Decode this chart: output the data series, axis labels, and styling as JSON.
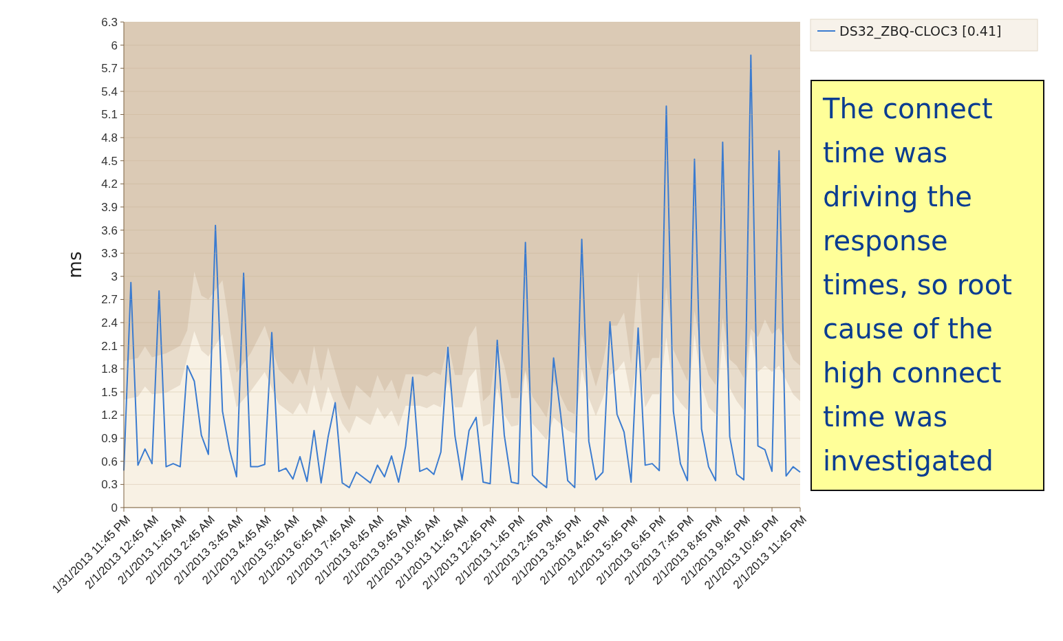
{
  "chart_data": {
    "type": "line",
    "ylabel": "ms",
    "ylim": [
      0,
      6.3
    ],
    "yticks": [
      0,
      0.3,
      0.6,
      0.9,
      1.2,
      1.5,
      1.8,
      2.1,
      2.4,
      2.7,
      3,
      3.3,
      3.6,
      3.9,
      4.2,
      4.5,
      4.8,
      5.1,
      5.4,
      5.7,
      6,
      6.3
    ],
    "xlim": [
      "2013-01-31T23:45",
      "2013-02-01T23:45"
    ],
    "xticks": [
      {
        "value": "2013-01-31T23:45",
        "label": "1/31/2013 11:45 PM"
      },
      {
        "value": "2013-02-01T00:45",
        "label": "2/1/2013 12:45 AM"
      },
      {
        "value": "2013-02-01T01:45",
        "label": "2/1/2013 1:45 AM"
      },
      {
        "value": "2013-02-01T02:45",
        "label": "2/1/2013 2:45 AM"
      },
      {
        "value": "2013-02-01T03:45",
        "label": "2/1/2013 3:45 AM"
      },
      {
        "value": "2013-02-01T04:45",
        "label": "2/1/2013 4:45 AM"
      },
      {
        "value": "2013-02-01T05:45",
        "label": "2/1/2013 5:45 AM"
      },
      {
        "value": "2013-02-01T06:45",
        "label": "2/1/2013 6:45 AM"
      },
      {
        "value": "2013-02-01T07:45",
        "label": "2/1/2013 7:45 AM"
      },
      {
        "value": "2013-02-01T08:45",
        "label": "2/1/2013 8:45 AM"
      },
      {
        "value": "2013-02-01T09:45",
        "label": "2/1/2013 9:45 AM"
      },
      {
        "value": "2013-02-01T10:45",
        "label": "2/1/2013 10:45 AM"
      },
      {
        "value": "2013-02-01T11:45",
        "label": "2/1/2013 11:45 AM"
      },
      {
        "value": "2013-02-01T12:45",
        "label": "2/1/2013 12:45 PM"
      },
      {
        "value": "2013-02-01T13:45",
        "label": "2/1/2013 1:45 PM"
      },
      {
        "value": "2013-02-01T14:45",
        "label": "2/1/2013 2:45 PM"
      },
      {
        "value": "2013-02-01T15:45",
        "label": "2/1/2013 3:45 PM"
      },
      {
        "value": "2013-02-01T16:45",
        "label": "2/1/2013 4:45 PM"
      },
      {
        "value": "2013-02-01T17:45",
        "label": "2/1/2013 5:45 PM"
      },
      {
        "value": "2013-02-01T18:45",
        "label": "2/1/2013 6:45 PM"
      },
      {
        "value": "2013-02-01T19:45",
        "label": "2/1/2013 7:45 PM"
      },
      {
        "value": "2013-02-01T20:45",
        "label": "2/1/2013 8:45 PM"
      },
      {
        "value": "2013-02-01T21:45",
        "label": "2/1/2013 9:45 PM"
      },
      {
        "value": "2013-02-01T22:45",
        "label": "2/1/2013 10:45 PM"
      },
      {
        "value": "2013-02-01T23:45",
        "label": "2/1/2013 11:45 PM"
      }
    ],
    "grid": "y",
    "legend": "top right",
    "annotations": [
      "The connect time was driving the response times, so root cause of the high connect time was investigated"
    ],
    "series": [
      {
        "type": "area",
        "color": "#e8dccb",
        "x": [
          "2013-01-31T23:45",
          "2013-02-01T00:15",
          "2013-02-01T00:30",
          "2013-02-01T00:45",
          "2013-02-01T01:15",
          "2013-02-01T01:45",
          "2013-02-01T02:00",
          "2013-02-01T02:15",
          "2013-02-01T02:30",
          "2013-02-01T02:45",
          "2013-02-01T03:15",
          "2013-02-01T03:45",
          "2013-02-01T04:15",
          "2013-02-01T04:45",
          "2013-02-01T05:15",
          "2013-02-01T05:45",
          "2013-02-01T06:00",
          "2013-02-01T06:15",
          "2013-02-01T06:30",
          "2013-02-01T06:45",
          "2013-02-01T07:00",
          "2013-02-01T07:30",
          "2013-02-01T07:45",
          "2013-02-01T08:00",
          "2013-02-01T08:30",
          "2013-02-01T08:45",
          "2013-02-01T09:00",
          "2013-02-01T09:15",
          "2013-02-01T09:30",
          "2013-02-01T09:45",
          "2013-02-01T10:15",
          "2013-02-01T10:30",
          "2013-02-01T10:45",
          "2013-02-01T11:00",
          "2013-02-01T11:15",
          "2013-02-01T11:30",
          "2013-02-01T11:45",
          "2013-02-01T12:00",
          "2013-02-01T12:15",
          "2013-02-01T12:30",
          "2013-02-01T12:45",
          "2013-02-01T13:00",
          "2013-02-01T13:15",
          "2013-02-01T13:30",
          "2013-02-01T13:45",
          "2013-02-01T14:00",
          "2013-02-01T14:15",
          "2013-02-01T14:45",
          "2013-02-01T15:00",
          "2013-02-01T15:30",
          "2013-02-01T15:45",
          "2013-02-01T16:00",
          "2013-02-01T16:15",
          "2013-02-01T16:30",
          "2013-02-01T16:45",
          "2013-02-01T17:00",
          "2013-02-01T17:15",
          "2013-02-01T17:30",
          "2013-02-01T17:45",
          "2013-02-01T18:00",
          "2013-02-01T18:15",
          "2013-02-01T18:30",
          "2013-02-01T18:45",
          "2013-02-01T19:00",
          "2013-02-01T19:15",
          "2013-02-01T19:30",
          "2013-02-01T19:45",
          "2013-02-01T20:00",
          "2013-02-01T20:15",
          "2013-02-01T20:30",
          "2013-02-01T20:45",
          "2013-02-01T21:00",
          "2013-02-01T21:15",
          "2013-02-01T21:30",
          "2013-02-01T21:45",
          "2013-02-01T22:00",
          "2013-02-01T22:15",
          "2013-02-01T22:30",
          "2013-02-01T22:45",
          "2013-02-01T23:00",
          "2013-02-01T23:30",
          "2013-02-01T23:45"
        ],
        "values": [
          1.9,
          1.94,
          2.09,
          1.95,
          2.0,
          2.1,
          2.3,
          3.06,
          2.75,
          2.7,
          2.95,
          1.75,
          2.0,
          2.36,
          1.79,
          1.6,
          1.8,
          1.58,
          2.1,
          1.64,
          2.08,
          1.45,
          1.26,
          1.59,
          1.42,
          1.72,
          1.51,
          1.66,
          1.4,
          1.73,
          1.73,
          1.7,
          1.76,
          1.72,
          2.13,
          1.72,
          1.72,
          2.21,
          2.36,
          1.38,
          1.47,
          2.13,
          1.84,
          1.42,
          1.42,
          1.78,
          1.44,
          1.17,
          1.64,
          1.26,
          1.21,
          2.25,
          1.88,
          1.57,
          1.88,
          2.36,
          2.36,
          2.53,
          1.86,
          3.06,
          1.76,
          1.94,
          1.94,
          2.86,
          2.05,
          1.84,
          1.64,
          2.55,
          2.05,
          1.72,
          1.59,
          2.46,
          1.92,
          1.84,
          1.68,
          2.32,
          2.21,
          2.44,
          2.25,
          2.33,
          1.92,
          1.84
        ]
      },
      {
        "type": "area",
        "color": "#f8f1e4",
        "x": [
          "2013-01-31T23:45",
          "2013-02-01T00:15",
          "2013-02-01T00:30",
          "2013-02-01T00:45",
          "2013-02-01T01:15",
          "2013-02-01T01:45",
          "2013-02-01T02:15",
          "2013-02-01T02:30",
          "2013-02-01T02:45",
          "2013-02-01T03:15",
          "2013-02-01T03:45",
          "2013-02-01T04:15",
          "2013-02-01T04:45",
          "2013-02-01T05:15",
          "2013-02-01T05:45",
          "2013-02-01T06:00",
          "2013-02-01T06:15",
          "2013-02-01T06:30",
          "2013-02-01T06:45",
          "2013-02-01T07:00",
          "2013-02-01T07:30",
          "2013-02-01T07:45",
          "2013-02-01T08:00",
          "2013-02-01T08:30",
          "2013-02-01T08:45",
          "2013-02-01T09:00",
          "2013-02-01T09:15",
          "2013-02-01T09:30",
          "2013-02-01T09:45",
          "2013-02-01T10:15",
          "2013-02-01T10:30",
          "2013-02-01T10:45",
          "2013-02-01T11:00",
          "2013-02-01T11:15",
          "2013-02-01T11:30",
          "2013-02-01T11:45",
          "2013-02-01T12:00",
          "2013-02-01T12:15",
          "2013-02-01T12:30",
          "2013-02-01T12:45",
          "2013-02-01T13:00",
          "2013-02-01T13:15",
          "2013-02-01T13:30",
          "2013-02-01T13:45",
          "2013-02-01T14:00",
          "2013-02-01T14:15",
          "2013-02-01T14:45",
          "2013-02-01T15:00",
          "2013-02-01T15:30",
          "2013-02-01T15:45",
          "2013-02-01T16:00",
          "2013-02-01T16:15",
          "2013-02-01T16:30",
          "2013-02-01T16:45",
          "2013-02-01T17:00",
          "2013-02-01T17:15",
          "2013-02-01T17:30",
          "2013-02-01T17:45",
          "2013-02-01T18:00",
          "2013-02-01T18:15",
          "2013-02-01T18:30",
          "2013-02-01T18:45",
          "2013-02-01T19:00",
          "2013-02-01T19:15",
          "2013-02-01T19:30",
          "2013-02-01T19:45",
          "2013-02-01T20:00",
          "2013-02-01T20:15",
          "2013-02-01T20:30",
          "2013-02-01T20:45",
          "2013-02-01T21:00",
          "2013-02-01T21:15",
          "2013-02-01T21:30",
          "2013-02-01T21:45",
          "2013-02-01T22:00",
          "2013-02-01T22:15",
          "2013-02-01T22:30",
          "2013-02-01T22:45",
          "2013-02-01T23:00",
          "2013-02-01T23:30",
          "2013-02-01T23:45"
        ],
        "values": [
          1.4,
          1.44,
          1.57,
          1.47,
          1.49,
          1.59,
          2.29,
          2.04,
          1.96,
          2.25,
          1.3,
          1.51,
          1.76,
          1.34,
          1.21,
          1.36,
          1.21,
          1.59,
          1.23,
          1.57,
          1.09,
          0.96,
          1.19,
          1.07,
          1.3,
          1.15,
          1.26,
          1.05,
          1.32,
          1.32,
          1.29,
          1.34,
          1.3,
          1.64,
          1.3,
          1.3,
          1.68,
          1.8,
          1.05,
          1.09,
          1.55,
          1.21,
          1.05,
          1.07,
          1.76,
          1.09,
          0.88,
          1.17,
          1.0,
          0.96,
          1.8,
          1.42,
          1.19,
          1.42,
          1.72,
          1.78,
          1.9,
          1.42,
          2.0,
          1.3,
          1.47,
          1.47,
          2.21,
          1.51,
          1.36,
          1.26,
          2.25,
          1.59,
          1.3,
          1.21,
          2.17,
          1.55,
          1.38,
          1.26,
          2.25,
          1.76,
          1.84,
          1.76,
          1.84,
          1.47,
          1.38
        ]
      },
      {
        "name": "DS32_ZBQ-CLOC3 [0.41]",
        "color": "#3a7bd0",
        "x": [
          "2013-01-31T23:45",
          "2013-02-01T00:00",
          "2013-02-01T00:15",
          "2013-02-01T00:30",
          "2013-02-01T00:45",
          "2013-02-01T01:00",
          "2013-02-01T01:15",
          "2013-02-01T01:30",
          "2013-02-01T01:45",
          "2013-02-01T02:00",
          "2013-02-01T02:15",
          "2013-02-01T02:30",
          "2013-02-01T02:45",
          "2013-02-01T03:00",
          "2013-02-01T03:15",
          "2013-02-01T03:30",
          "2013-02-01T03:45",
          "2013-02-01T04:00",
          "2013-02-01T04:15",
          "2013-02-01T04:30",
          "2013-02-01T04:45",
          "2013-02-01T05:00",
          "2013-02-01T05:15",
          "2013-02-01T05:30",
          "2013-02-01T05:45",
          "2013-02-01T06:00",
          "2013-02-01T06:15",
          "2013-02-01T06:30",
          "2013-02-01T06:45",
          "2013-02-01T07:00",
          "2013-02-01T07:15",
          "2013-02-01T07:30",
          "2013-02-01T07:45",
          "2013-02-01T08:00",
          "2013-02-01T08:15",
          "2013-02-01T08:30",
          "2013-02-01T08:45",
          "2013-02-01T09:00",
          "2013-02-01T09:15",
          "2013-02-01T09:30",
          "2013-02-01T09:45",
          "2013-02-01T10:00",
          "2013-02-01T10:15",
          "2013-02-01T10:30",
          "2013-02-01T10:45",
          "2013-02-01T11:00",
          "2013-02-01T11:15",
          "2013-02-01T11:30",
          "2013-02-01T11:45",
          "2013-02-01T12:00",
          "2013-02-01T12:15",
          "2013-02-01T12:30",
          "2013-02-01T12:45",
          "2013-02-01T13:00",
          "2013-02-01T13:15",
          "2013-02-01T13:30",
          "2013-02-01T13:45",
          "2013-02-01T14:00",
          "2013-02-01T14:15",
          "2013-02-01T14:30",
          "2013-02-01T14:45",
          "2013-02-01T15:00",
          "2013-02-01T15:15",
          "2013-02-01T15:30",
          "2013-02-01T15:45",
          "2013-02-01T16:00",
          "2013-02-01T16:15",
          "2013-02-01T16:30",
          "2013-02-01T16:45",
          "2013-02-01T17:00",
          "2013-02-01T17:15",
          "2013-02-01T17:30",
          "2013-02-01T17:45",
          "2013-02-01T18:00",
          "2013-02-01T18:15",
          "2013-02-01T18:30",
          "2013-02-01T18:45",
          "2013-02-01T19:00",
          "2013-02-01T19:15",
          "2013-02-01T19:30",
          "2013-02-01T19:45",
          "2013-02-01T20:00",
          "2013-02-01T20:15",
          "2013-02-01T20:30",
          "2013-02-01T20:45",
          "2013-02-01T21:00",
          "2013-02-01T21:15",
          "2013-02-01T21:30",
          "2013-02-01T21:45",
          "2013-02-01T22:00",
          "2013-02-01T22:15",
          "2013-02-01T22:30",
          "2013-02-01T22:45",
          "2013-02-01T23:00",
          "2013-02-01T23:15",
          "2013-02-01T23:30",
          "2013-02-01T23:45"
        ],
        "values": [
          0.48,
          2.92,
          0.55,
          0.76,
          0.57,
          2.81,
          0.53,
          0.57,
          0.53,
          1.84,
          1.64,
          0.94,
          0.69,
          3.66,
          1.25,
          0.75,
          0.4,
          3.04,
          0.53,
          0.53,
          0.56,
          2.27,
          0.47,
          0.51,
          0.37,
          0.66,
          0.34,
          1.0,
          0.32,
          0.92,
          1.36,
          0.32,
          0.26,
          0.46,
          0.39,
          0.32,
          0.55,
          0.4,
          0.67,
          0.33,
          0.8,
          1.69,
          0.47,
          0.51,
          0.43,
          0.72,
          2.08,
          0.93,
          0.36,
          1.0,
          1.17,
          0.33,
          0.31,
          2.17,
          0.94,
          0.33,
          0.31,
          3.44,
          0.42,
          0.33,
          0.26,
          1.94,
          1.21,
          0.35,
          0.26,
          3.48,
          0.86,
          0.36,
          0.46,
          2.41,
          1.21,
          0.98,
          0.33,
          2.33,
          0.55,
          0.57,
          0.48,
          5.21,
          1.25,
          0.57,
          0.35,
          4.52,
          1.02,
          0.53,
          0.35,
          4.74,
          0.92,
          0.43,
          0.36,
          5.87,
          0.8,
          0.75,
          0.47,
          4.63,
          0.41,
          0.53,
          0.46
        ]
      }
    ]
  }
}
